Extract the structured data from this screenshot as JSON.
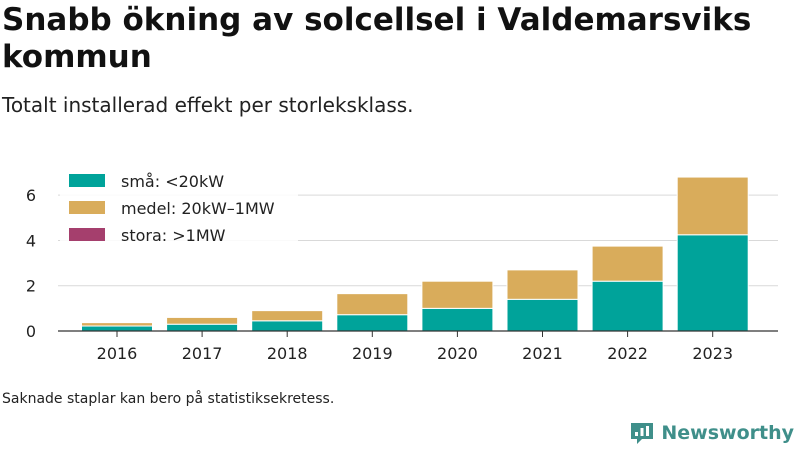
{
  "title": "Snabb ökning av solcellsel i Valdemarsviks kommun",
  "subtitle": "Totalt installerad effekt per storleksklass.",
  "footnote": "Saknade staplar kan bero på statistiksekretess.",
  "brand": {
    "name": "Newsworthy",
    "icon": "newsworthy-logo-icon"
  },
  "colors": {
    "small": "#00a39a",
    "medium": "#d9ac5b",
    "large": "#a53f6d",
    "grid": "#d9d9d9",
    "axis": "#333333"
  },
  "chart_data": {
    "type": "bar",
    "stacked": true,
    "categories": [
      "2016",
      "2017",
      "2018",
      "2019",
      "2020",
      "2021",
      "2022",
      "2023"
    ],
    "series": [
      {
        "name": "små: <20kW",
        "color": "#00a39a",
        "values": [
          0.22,
          0.3,
          0.45,
          0.72,
          1.0,
          1.4,
          2.2,
          4.25
        ]
      },
      {
        "name": "medel: 20kW–1MW",
        "color": "#d9ac5b",
        "values": [
          0.15,
          0.3,
          0.45,
          0.93,
          1.2,
          1.3,
          1.55,
          2.55
        ]
      },
      {
        "name": "stora: >1MW",
        "color": "#a53f6d",
        "values": [
          0,
          0,
          0,
          0,
          0,
          0,
          0,
          0
        ]
      }
    ],
    "yticks": [
      0,
      2,
      4,
      6
    ],
    "ylim": [
      0,
      7.2
    ],
    "grid": true,
    "legend": "top-left"
  }
}
